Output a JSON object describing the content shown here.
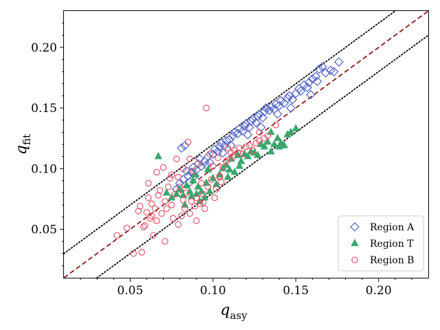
{
  "chart_data": {
    "type": "scatter",
    "xlabel": "q",
    "xlabel_sub": "asy",
    "ylabel": "q",
    "ylabel_sub": "fit",
    "xlim": [
      0.01,
      0.23
    ],
    "ylim": [
      0.01,
      0.23
    ],
    "xticks": [
      0.05,
      0.1,
      0.15,
      0.2
    ],
    "yticks": [
      0.05,
      0.1,
      0.15,
      0.2
    ],
    "xtick_labels": [
      "0.05",
      "0.10",
      "0.15",
      "0.20"
    ],
    "ytick_labels": [
      "0.05",
      "0.10",
      "0.15",
      "0.20"
    ],
    "grid": false,
    "legend_position": "bottom-right",
    "reference_lines": [
      {
        "style": "dashed",
        "color": "#8b1a1a",
        "offset": 0.0
      },
      {
        "style": "dotted",
        "color": "#000000",
        "offset": 0.02
      },
      {
        "style": "dotted",
        "color": "#000000",
        "offset": -0.02
      }
    ],
    "series": [
      {
        "name": "Region A",
        "marker": "diamond-open",
        "color": "#5b6cc8",
        "points": [
          [
            0.081,
            0.117
          ],
          [
            0.083,
            0.119
          ],
          [
            0.078,
            0.083
          ],
          [
            0.08,
            0.088
          ],
          [
            0.082,
            0.091
          ],
          [
            0.085,
            0.094
          ],
          [
            0.084,
            0.098
          ],
          [
            0.087,
            0.097
          ],
          [
            0.088,
            0.101
          ],
          [
            0.09,
            0.099
          ],
          [
            0.091,
            0.104
          ],
          [
            0.093,
            0.102
          ],
          [
            0.092,
            0.108
          ],
          [
            0.095,
            0.106
          ],
          [
            0.097,
            0.11
          ],
          [
            0.098,
            0.105
          ],
          [
            0.1,
            0.112
          ],
          [
            0.101,
            0.116
          ],
          [
            0.103,
            0.114
          ],
          [
            0.104,
            0.118
          ],
          [
            0.105,
            0.121
          ],
          [
            0.107,
            0.119
          ],
          [
            0.108,
            0.123
          ],
          [
            0.11,
            0.124
          ],
          [
            0.112,
            0.127
          ],
          [
            0.113,
            0.13
          ],
          [
            0.115,
            0.129
          ],
          [
            0.116,
            0.133
          ],
          [
            0.118,
            0.131
          ],
          [
            0.119,
            0.135
          ],
          [
            0.12,
            0.137
          ],
          [
            0.122,
            0.134
          ],
          [
            0.123,
            0.139
          ],
          [
            0.124,
            0.141
          ],
          [
            0.126,
            0.138
          ],
          [
            0.127,
            0.143
          ],
          [
            0.128,
            0.145
          ],
          [
            0.13,
            0.142
          ],
          [
            0.131,
            0.147
          ],
          [
            0.132,
            0.15
          ],
          [
            0.134,
            0.148
          ],
          [
            0.135,
            0.151
          ],
          [
            0.137,
            0.149
          ],
          [
            0.138,
            0.153
          ],
          [
            0.14,
            0.152
          ],
          [
            0.141,
            0.156
          ],
          [
            0.143,
            0.154
          ],
          [
            0.145,
            0.158
          ],
          [
            0.146,
            0.16
          ],
          [
            0.148,
            0.157
          ],
          [
            0.15,
            0.162
          ],
          [
            0.152,
            0.166
          ],
          [
            0.153,
            0.164
          ],
          [
            0.155,
            0.169
          ],
          [
            0.157,
            0.167
          ],
          [
            0.158,
            0.171
          ],
          [
            0.16,
            0.174
          ],
          [
            0.162,
            0.176
          ],
          [
            0.164,
            0.182
          ],
          [
            0.166,
            0.184
          ],
          [
            0.168,
            0.179
          ],
          [
            0.171,
            0.181
          ],
          [
            0.173,
            0.18
          ],
          [
            0.176,
            0.188
          ],
          [
            0.163,
            0.172
          ],
          [
            0.159,
            0.161
          ],
          [
            0.147,
            0.15
          ],
          [
            0.139,
            0.145
          ],
          [
            0.129,
            0.134
          ],
          [
            0.121,
            0.128
          ],
          [
            0.111,
            0.119
          ],
          [
            0.106,
            0.113
          ],
          [
            0.096,
            0.103
          ],
          [
            0.089,
            0.094
          ],
          [
            0.086,
            0.089
          ]
        ]
      },
      {
        "name": "Region T",
        "marker": "triangle-filled",
        "color": "#3aa76d",
        "points": [
          [
            0.067,
            0.11
          ],
          [
            0.072,
            0.08
          ],
          [
            0.075,
            0.076
          ],
          [
            0.078,
            0.079
          ],
          [
            0.08,
            0.083
          ],
          [
            0.082,
            0.078
          ],
          [
            0.083,
            0.07
          ],
          [
            0.084,
            0.086
          ],
          [
            0.086,
            0.081
          ],
          [
            0.087,
            0.077
          ],
          [
            0.088,
            0.09
          ],
          [
            0.09,
            0.079
          ],
          [
            0.091,
            0.085
          ],
          [
            0.093,
            0.081
          ],
          [
            0.095,
            0.076
          ],
          [
            0.096,
            0.088
          ],
          [
            0.098,
            0.081
          ],
          [
            0.1,
            0.092
          ],
          [
            0.102,
            0.087
          ],
          [
            0.104,
            0.095
          ],
          [
            0.106,
            0.1
          ],
          [
            0.108,
            0.103
          ],
          [
            0.11,
            0.099
          ],
          [
            0.111,
            0.108
          ],
          [
            0.113,
            0.097
          ],
          [
            0.115,
            0.111
          ],
          [
            0.117,
            0.106
          ],
          [
            0.119,
            0.112
          ],
          [
            0.121,
            0.11
          ],
          [
            0.123,
            0.114
          ],
          [
            0.125,
            0.113
          ],
          [
            0.127,
            0.111
          ],
          [
            0.129,
            0.12
          ],
          [
            0.131,
            0.118
          ],
          [
            0.133,
            0.122
          ],
          [
            0.135,
            0.114
          ],
          [
            0.137,
            0.12
          ],
          [
            0.139,
            0.125
          ],
          [
            0.141,
            0.121
          ],
          [
            0.143,
            0.119
          ],
          [
            0.145,
            0.128
          ],
          [
            0.147,
            0.13
          ],
          [
            0.15,
            0.133
          ],
          [
            0.135,
            0.13
          ],
          [
            0.14,
            0.118
          ],
          [
            0.116,
            0.102
          ],
          [
            0.109,
            0.093
          ],
          [
            0.097,
            0.099
          ],
          [
            0.092,
            0.073
          ],
          [
            0.089,
            0.095
          ]
        ]
      },
      {
        "name": "Region B",
        "marker": "circle-open",
        "color": "#e0566b",
        "points": [
          [
            0.042,
            0.045
          ],
          [
            0.048,
            0.051
          ],
          [
            0.052,
            0.03
          ],
          [
            0.055,
            0.065
          ],
          [
            0.056,
            0.069
          ],
          [
            0.057,
            0.031
          ],
          [
            0.058,
            0.052
          ],
          [
            0.06,
            0.064
          ],
          [
            0.061,
            0.076
          ],
          [
            0.061,
            0.088
          ],
          [
            0.062,
            0.059
          ],
          [
            0.063,
            0.071
          ],
          [
            0.064,
            0.045
          ],
          [
            0.065,
            0.067
          ],
          [
            0.066,
            0.057
          ],
          [
            0.067,
            0.078
          ],
          [
            0.068,
            0.082
          ],
          [
            0.069,
            0.063
          ],
          [
            0.07,
            0.101
          ],
          [
            0.071,
            0.073
          ],
          [
            0.072,
            0.067
          ],
          [
            0.073,
            0.085
          ],
          [
            0.074,
            0.092
          ],
          [
            0.075,
            0.07
          ],
          [
            0.076,
            0.059
          ],
          [
            0.077,
            0.079
          ],
          [
            0.078,
            0.108
          ],
          [
            0.079,
            0.093
          ],
          [
            0.08,
            0.085
          ],
          [
            0.081,
            0.061
          ],
          [
            0.082,
            0.074
          ],
          [
            0.083,
            0.067
          ],
          [
            0.084,
            0.08
          ],
          [
            0.085,
            0.122
          ],
          [
            0.086,
            0.108
          ],
          [
            0.087,
            0.073
          ],
          [
            0.088,
            0.098
          ],
          [
            0.089,
            0.069
          ],
          [
            0.09,
            0.076
          ],
          [
            0.091,
            0.104
          ],
          [
            0.092,
            0.071
          ],
          [
            0.093,
            0.088
          ],
          [
            0.094,
            0.079
          ],
          [
            0.095,
            0.067
          ],
          [
            0.096,
            0.15
          ],
          [
            0.097,
            0.085
          ],
          [
            0.098,
            0.112
          ],
          [
            0.099,
            0.091
          ],
          [
            0.1,
            0.102
          ],
          [
            0.101,
            0.076
          ],
          [
            0.102,
            0.083
          ],
          [
            0.103,
            0.109
          ],
          [
            0.104,
            0.093
          ],
          [
            0.105,
            0.089
          ],
          [
            0.106,
            0.101
          ],
          [
            0.108,
            0.106
          ],
          [
            0.11,
            0.108
          ],
          [
            0.111,
            0.113
          ],
          [
            0.112,
            0.11
          ],
          [
            0.113,
            0.115
          ],
          [
            0.115,
            0.113
          ],
          [
            0.116,
            0.117
          ],
          [
            0.118,
            0.112
          ],
          [
            0.12,
            0.118
          ],
          [
            0.122,
            0.119
          ],
          [
            0.124,
            0.115
          ],
          [
            0.126,
            0.121
          ],
          [
            0.128,
            0.123
          ],
          [
            0.131,
            0.125
          ],
          [
            0.133,
            0.127
          ],
          [
            0.138,
            0.136
          ],
          [
            0.128,
            0.13
          ],
          [
            0.109,
            0.117
          ],
          [
            0.104,
            0.094
          ],
          [
            0.094,
            0.072
          ],
          [
            0.09,
            0.057
          ],
          [
            0.086,
            0.063
          ],
          [
            0.079,
            0.054
          ],
          [
            0.071,
            0.04
          ],
          [
            0.066,
            0.097
          ],
          [
            0.063,
            0.061
          ],
          [
            0.059,
            0.053
          ],
          [
            0.075,
            0.095
          ],
          [
            0.082,
            0.1
          ]
        ]
      }
    ]
  }
}
